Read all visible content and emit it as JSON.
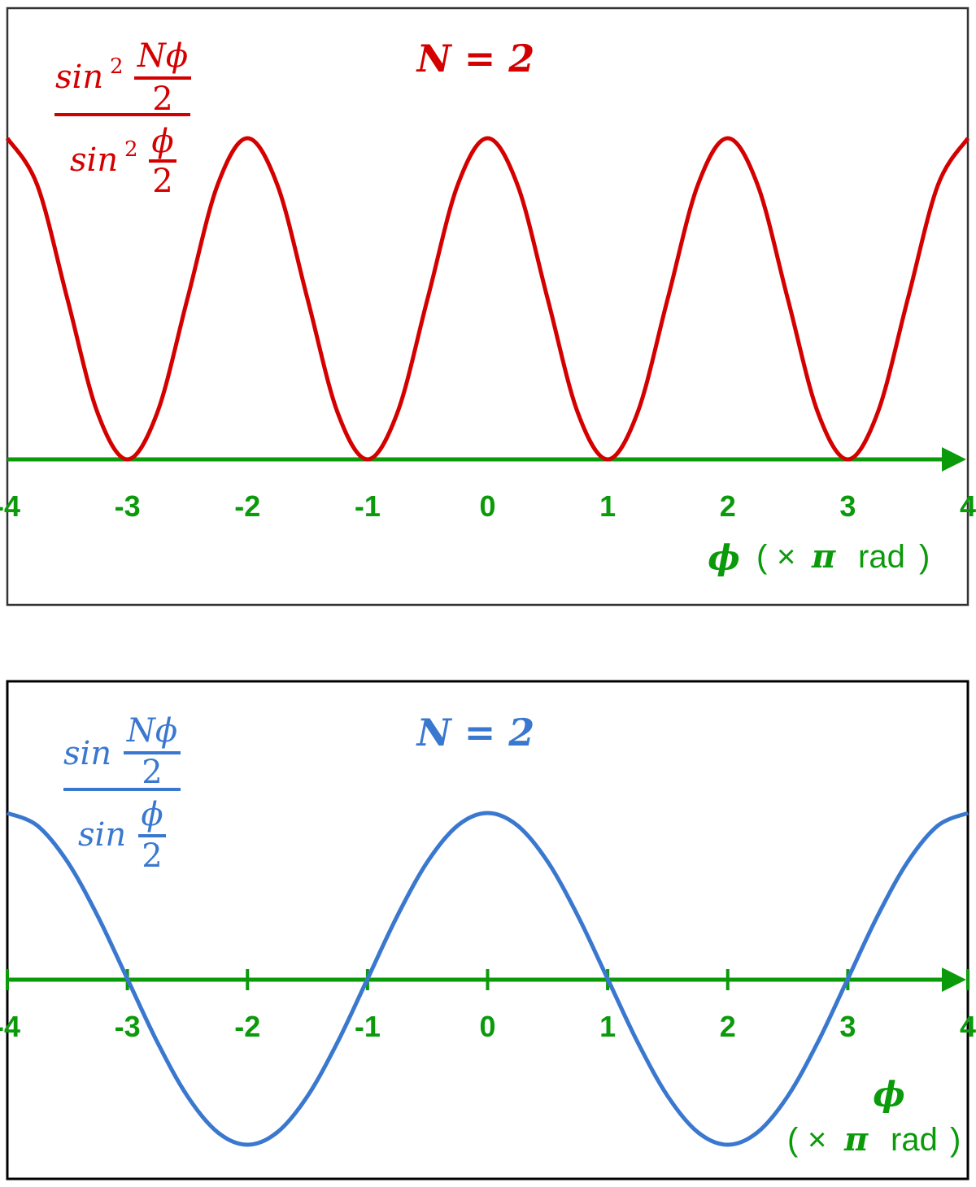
{
  "colors": {
    "top_curve": "#d40000",
    "bottom_curve": "#3a78d0",
    "axis": "#0a9a0a",
    "frame": "#111111"
  },
  "chart_data": [
    {
      "type": "line",
      "title": "N = 2",
      "formula": {
        "func": "sin",
        "power": "2",
        "numerator": "Nϕ",
        "denominator": "2",
        "den_numerator": "ϕ",
        "den_denominator": "2"
      },
      "xlabel": {
        "symbol": "ϕ",
        "open": "(",
        "times": "×",
        "pi": "π",
        "unit": "rad",
        "close": ")"
      },
      "xlim": [
        -4,
        4
      ],
      "ylim": [
        0,
        4
      ],
      "x_ticks": [
        "-4",
        "-3",
        "-2",
        "-1",
        "0",
        "1",
        "2",
        "3",
        "4"
      ],
      "tick_marks": false,
      "grid": false,
      "x_step": 0.25,
      "y": [
        4,
        3.414,
        2,
        0.586,
        0,
        0.586,
        2,
        3.414,
        4,
        3.414,
        2,
        0.586,
        0,
        0.586,
        2,
        3.414,
        4,
        3.414,
        2,
        0.586,
        0,
        0.586,
        2,
        3.414,
        4,
        3.414,
        2,
        0.586,
        0,
        0.586,
        2,
        3.414,
        4
      ]
    },
    {
      "type": "line",
      "title": "N = 2",
      "formula": {
        "func": "sin",
        "numerator": "Nϕ",
        "denominator": "2",
        "den_numerator": "ϕ",
        "den_denominator": "2"
      },
      "xlabel": {
        "symbol": "ϕ",
        "open": "(",
        "times": "×",
        "pi": "π",
        "unit": "rad",
        "close": ")"
      },
      "xlim": [
        -4,
        4
      ],
      "ylim": [
        -2,
        2
      ],
      "x_ticks": [
        "-4",
        "-3",
        "-2",
        "-1",
        "0",
        "1",
        "2",
        "3",
        "4"
      ],
      "tick_marks": true,
      "grid": false,
      "x_step": 0.25,
      "y": [
        2,
        1.848,
        1.414,
        0.765,
        0,
        -0.765,
        -1.414,
        -1.848,
        -2,
        -1.848,
        -1.414,
        -0.765,
        0,
        0.765,
        1.414,
        1.848,
        2,
        1.848,
        1.414,
        0.765,
        0,
        -0.765,
        -1.414,
        -1.848,
        -2,
        -1.848,
        -1.414,
        -0.765,
        0,
        0.765,
        1.414,
        1.848,
        2
      ]
    }
  ]
}
